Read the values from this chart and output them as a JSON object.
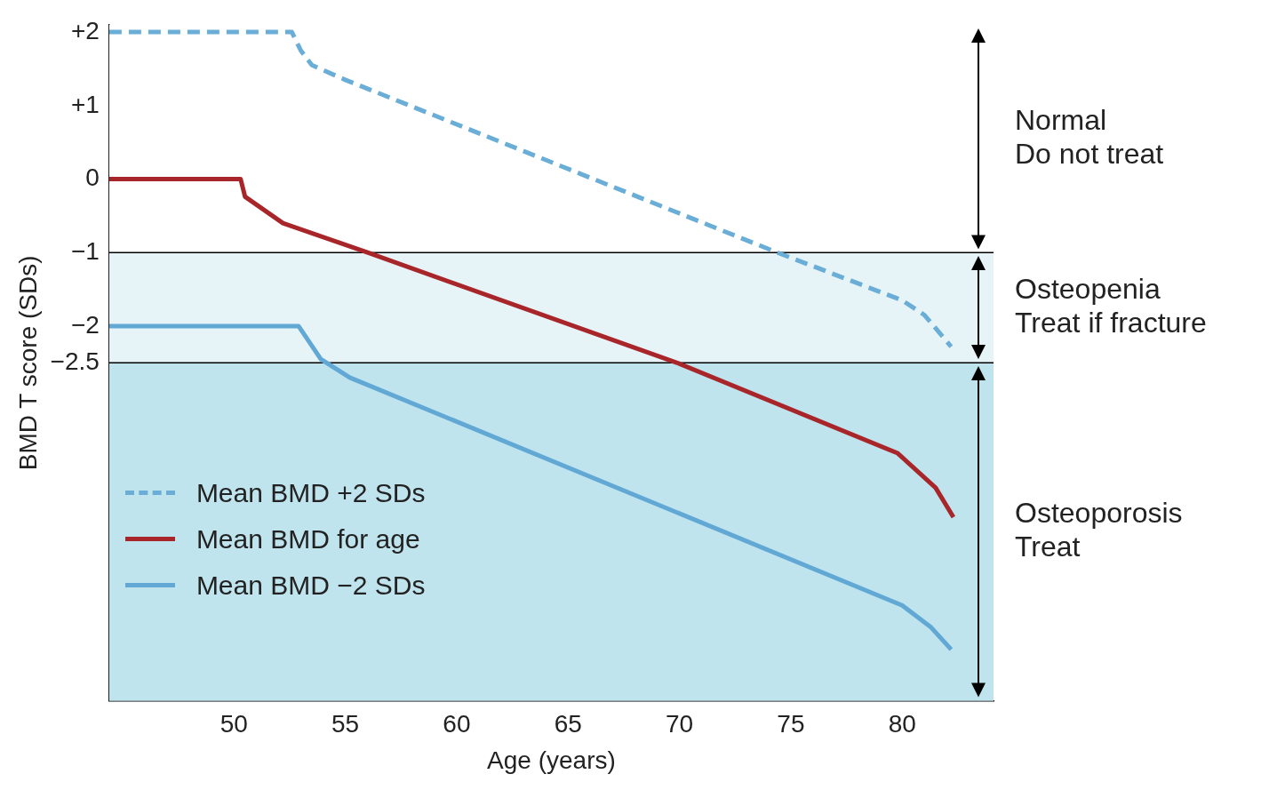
{
  "chart_data": {
    "type": "line",
    "xlabel": "Age (years)",
    "ylabel": "BMD T score (SDs)",
    "xlim": [
      44.4,
      84.1
    ],
    "ylim": [
      -7.1,
      2.1
    ],
    "xticks": [
      50,
      55,
      60,
      65,
      70,
      75,
      80
    ],
    "yticks": [
      {
        "value": 2,
        "label": "+2"
      },
      {
        "value": 1,
        "label": "+1"
      },
      0,
      {
        "value": -1,
        "label": "−1"
      },
      {
        "value": -2,
        "label": "−2"
      },
      {
        "value": -2.5,
        "label": "−2.5"
      }
    ],
    "grid": false,
    "legend": "bottom left",
    "series": [
      {
        "name": "Mean BMD +2 SDs",
        "color": "#6aaed8",
        "line_style": "dashed",
        "x": [
          44.4,
          52.6,
          53.0,
          53.5,
          55,
          74.4,
          80,
          81,
          82.2
        ],
        "values": [
          2,
          2,
          1.75,
          1.55,
          1.35,
          -1,
          -1.65,
          -1.85,
          -2.28
        ]
      },
      {
        "name": "Mean BMD for age",
        "color": "#a8262a",
        "line_style": "solid",
        "x": [
          44.4,
          50.3,
          50.5,
          52.2,
          56,
          69.9,
          79.8,
          81.5,
          82.3
        ],
        "values": [
          0,
          0,
          -0.24,
          -0.6,
          -1,
          -2.5,
          -3.73,
          -4.2,
          -4.6
        ]
      },
      {
        "name": "Mean BMD −2 SDs",
        "color": "#62a8d4",
        "line_style": "solid",
        "x": [
          44.4,
          52.9,
          53.9,
          55.2,
          80,
          81.3,
          82.2
        ],
        "values": [
          -2,
          -2,
          -2.45,
          -2.7,
          -5.8,
          -6.1,
          -6.4
        ]
      }
    ],
    "ref_lines": [
      {
        "axis": "y",
        "value": -1,
        "color": "#000000"
      },
      {
        "axis": "y",
        "value": -2.5,
        "color": "#000000"
      }
    ],
    "bands": [
      {
        "axis": "y",
        "from": -1,
        "to": 2.1,
        "color": "#ffffff",
        "label": "Normal\nDo not treat"
      },
      {
        "axis": "y",
        "from": -2.5,
        "to": -1,
        "color": "#e6f4f8",
        "label": "Osteopenia\nTreat if fracture"
      },
      {
        "axis": "y",
        "from": -7.1,
        "to": -2.5,
        "color": "#bfe4ee",
        "label": "Osteoporosis\nTreat"
      }
    ]
  }
}
